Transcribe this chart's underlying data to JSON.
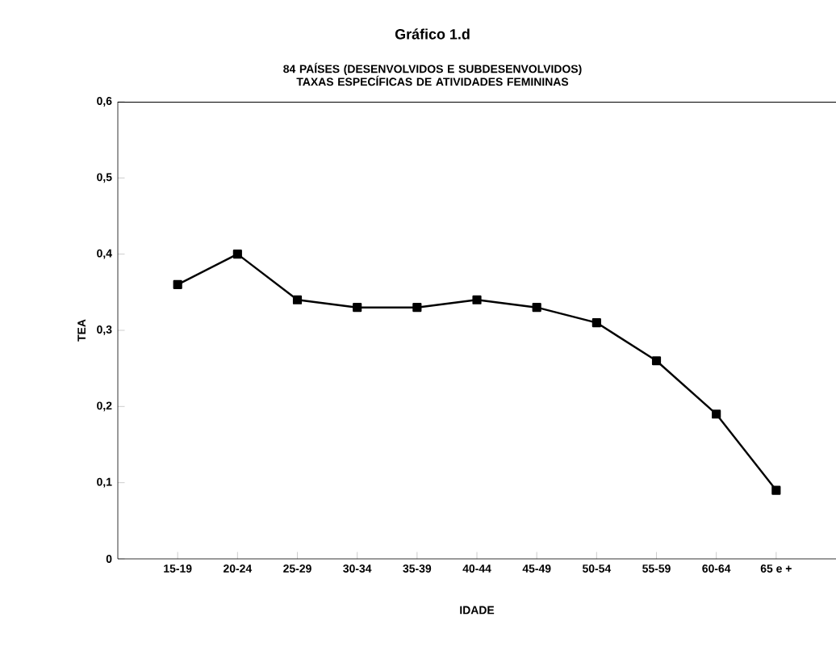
{
  "chart_data": {
    "type": "line",
    "title": "Gráfico 1.d",
    "subtitle": "84 PAÍSES (DESENVOLVIDOS E SUBDESENVOLVIDOS) TAXAS ESPECÍFICAS DE ATIVIDADES FEMININAS",
    "xlabel": "IDADE",
    "ylabel": "TEA",
    "categories": [
      "15-19",
      "20-24",
      "25-29",
      "30-34",
      "35-39",
      "40-44",
      "45-49",
      "50-54",
      "55-59",
      "60-64",
      "65 e +"
    ],
    "series": [
      {
        "color": "#000000",
        "values": [
          0.36,
          0.4,
          0.34,
          0.33,
          0.33,
          0.34,
          0.33,
          0.31,
          0.26,
          0.19,
          0.09
        ]
      }
    ],
    "ylim": [
      0,
      0.6
    ],
    "yticks": [
      0,
      {
        "value": 0.1,
        "label": "0,1"
      },
      {
        "value": 0.2,
        "label": "0,2"
      },
      {
        "value": 0.3,
        "label": "0,3"
      },
      {
        "value": 0.4,
        "label": "0,4"
      },
      {
        "value": 0.5,
        "label": "0,5"
      },
      {
        "value": 0.6,
        "label": "0,6"
      }
    ],
    "grid": false,
    "marker": "square",
    "line_style": "solid"
  }
}
